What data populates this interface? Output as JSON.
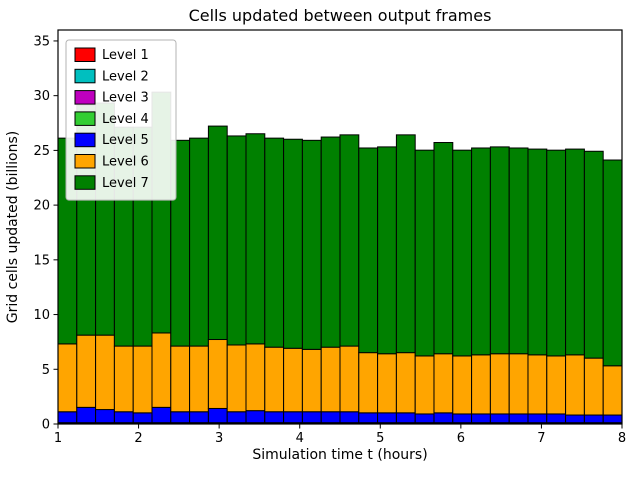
{
  "chart_data": {
    "type": "bar",
    "stacked": true,
    "title": "Cells updated between output frames",
    "xlabel": "Simulation time t (hours)",
    "ylabel": "Grid cells updated (billions)",
    "xlim": [
      1,
      8
    ],
    "ylim": [
      0,
      36
    ],
    "xticks": [
      1,
      2,
      3,
      4,
      5,
      6,
      7,
      8
    ],
    "yticks": [
      0,
      5,
      10,
      15,
      20,
      25,
      30,
      35
    ],
    "grid": false,
    "legend_position": "upper left",
    "bar_x_start": 1,
    "bar_width_hours": 0.23333,
    "n_bars": 30,
    "bar_edge_color": "#000000",
    "series": [
      {
        "name": "Level 1",
        "color": "#ff0000",
        "const": 0.03
      },
      {
        "name": "Level 2",
        "color": "#00bfbf",
        "const": 0.03
      },
      {
        "name": "Level 3",
        "color": "#bf00bf",
        "const": 0.03
      },
      {
        "name": "Level 4",
        "color": "#32cd32",
        "const": 0.03
      },
      {
        "name": "Level 5",
        "color": "#0000ff",
        "values": [
          1.0,
          1.4,
          1.2,
          1.0,
          0.9,
          1.4,
          1.0,
          1.0,
          1.3,
          1.0,
          1.1,
          1.0,
          1.0,
          1.0,
          1.0,
          1.0,
          0.9,
          0.9,
          0.9,
          0.8,
          0.9,
          0.8,
          0.8,
          0.8,
          0.8,
          0.8,
          0.8,
          0.7,
          0.7,
          0.7
        ]
      },
      {
        "name": "Level 6",
        "color": "#ffa500",
        "values": [
          6.2,
          6.6,
          6.8,
          6.0,
          6.1,
          6.8,
          6.0,
          6.0,
          6.3,
          6.1,
          6.1,
          5.9,
          5.8,
          5.7,
          5.9,
          6.0,
          5.5,
          5.4,
          5.5,
          5.3,
          5.4,
          5.3,
          5.4,
          5.5,
          5.5,
          5.4,
          5.3,
          5.5,
          5.2,
          4.5
        ]
      },
      {
        "name": "Level 7",
        "color": "#008000",
        "values": [
          18.8,
          21.0,
          21.2,
          20.0,
          20.0,
          22.0,
          18.8,
          19.0,
          19.5,
          19.1,
          19.2,
          19.1,
          19.1,
          19.1,
          19.2,
          19.3,
          18.7,
          18.9,
          19.9,
          18.8,
          19.3,
          18.8,
          18.9,
          18.9,
          18.8,
          18.8,
          18.8,
          18.8,
          18.9,
          18.8
        ]
      }
    ]
  }
}
